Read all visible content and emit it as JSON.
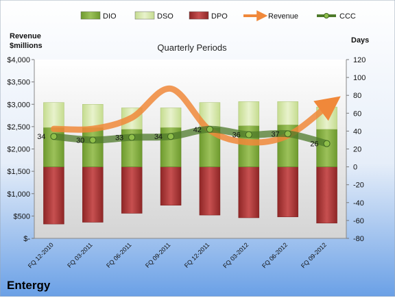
{
  "chart_data": {
    "type": "bar",
    "title": "Quarterly Periods",
    "company": "Entergy",
    "left_axis": {
      "label_line1": "Revenue",
      "label_line2": "$millions",
      "min": 0,
      "max": 4000,
      "step": 500,
      "tick_labels": [
        "$-",
        "$500",
        "$1,000",
        "$1,500",
        "$2,000",
        "$2,500",
        "$3,000",
        "$3,500",
        "$4,000"
      ]
    },
    "right_axis": {
      "label": "Days",
      "min": -80,
      "max": 120,
      "step": 20
    },
    "categories": [
      "FQ 12-2010",
      "FQ 03-2011",
      "FQ 06-2011",
      "FQ 09-2011",
      "FQ 12-2011",
      "FQ 03-2012",
      "FQ 06-2012",
      "FQ 09-2012"
    ],
    "series": [
      {
        "name": "DIO",
        "kind": "stacked-bar",
        "axis": "days",
        "values": [
          44,
          44,
          42,
          44,
          44,
          46,
          47,
          42
        ],
        "color": "#8db04a"
      },
      {
        "name": "DSO",
        "kind": "stacked-bar",
        "axis": "days",
        "values": [
          28,
          26,
          24,
          22,
          28,
          27,
          26,
          25
        ],
        "color": "#d8e8b0"
      },
      {
        "name": "DPO",
        "kind": "stacked-bar",
        "axis": "days",
        "values": [
          -64,
          -62,
          -52,
          -43,
          -54,
          -57,
          -56,
          -63
        ],
        "color": "#b23a3a"
      },
      {
        "name": "Revenue",
        "kind": "line",
        "axis": "revenue",
        "values": [
          2450,
          2450,
          2700,
          3350,
          2420,
          2150,
          2300,
          2950
        ],
        "color": "#f0883a"
      },
      {
        "name": "CCC",
        "kind": "line",
        "axis": "days",
        "values": [
          34,
          30,
          33,
          34,
          42,
          36,
          37,
          26
        ],
        "labels": [
          "34",
          "30",
          "33",
          "34",
          "42",
          "36",
          "37",
          "26"
        ],
        "color": "#4d7a2a"
      }
    ],
    "legend_position": "top",
    "grid": false
  }
}
